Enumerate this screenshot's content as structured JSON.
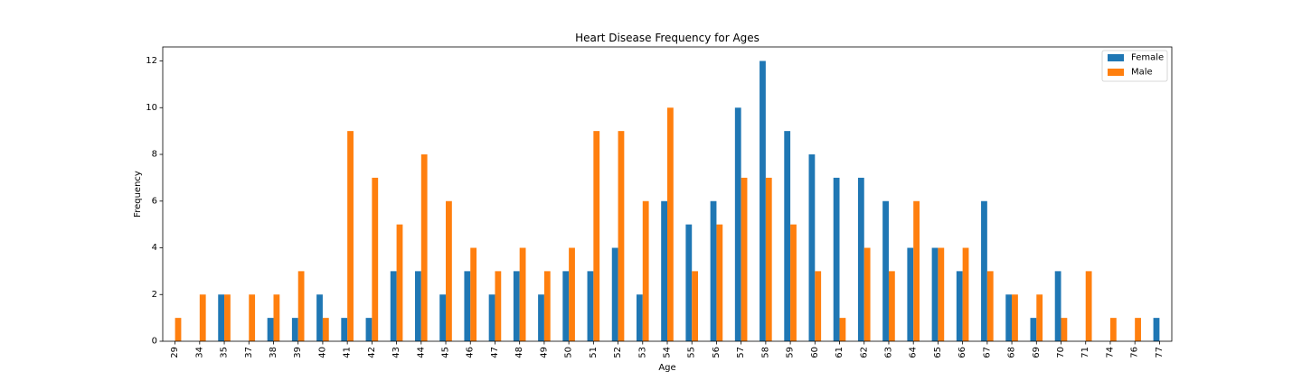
{
  "chart_data": {
    "type": "bar",
    "title": "Heart Disease Frequency for Ages",
    "xlabel": "Age",
    "ylabel": "Frequency",
    "ylim": [
      0,
      12.6
    ],
    "yticks": [
      0,
      2,
      4,
      6,
      8,
      10,
      12
    ],
    "grid": false,
    "legend_position": "top-right",
    "categories": [
      "29",
      "34",
      "35",
      "37",
      "38",
      "39",
      "40",
      "41",
      "42",
      "43",
      "44",
      "45",
      "46",
      "47",
      "48",
      "49",
      "50",
      "51",
      "52",
      "53",
      "54",
      "55",
      "56",
      "57",
      "58",
      "59",
      "60",
      "61",
      "62",
      "63",
      "64",
      "65",
      "66",
      "67",
      "68",
      "69",
      "70",
      "71",
      "74",
      "76",
      "77"
    ],
    "series": [
      {
        "name": "Female",
        "color": "#1f77b4",
        "values": [
          0,
          0,
          2,
          0,
          1,
          1,
          2,
          1,
          1,
          3,
          3,
          2,
          3,
          2,
          3,
          2,
          3,
          3,
          4,
          2,
          6,
          5,
          6,
          10,
          12,
          9,
          8,
          7,
          7,
          6,
          4,
          4,
          3,
          6,
          2,
          1,
          3,
          0,
          0,
          0,
          1
        ]
      },
      {
        "name": "Male",
        "color": "#ff7f0e",
        "values": [
          1,
          2,
          2,
          2,
          2,
          3,
          1,
          9,
          7,
          5,
          8,
          6,
          4,
          3,
          4,
          3,
          4,
          9,
          9,
          6,
          10,
          3,
          5,
          7,
          7,
          5,
          3,
          1,
          4,
          3,
          6,
          4,
          4,
          3,
          2,
          2,
          1,
          3,
          1,
          1,
          0
        ]
      }
    ]
  }
}
